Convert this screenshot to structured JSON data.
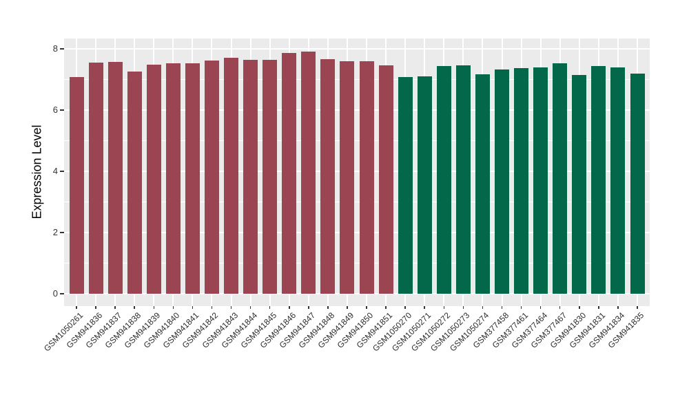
{
  "chart_data": {
    "type": "bar",
    "title": "",
    "xlabel": "",
    "ylabel": "Expression Level",
    "ylim": [
      -0.4,
      8.35
    ],
    "yticks": [
      0,
      2,
      4,
      6,
      8
    ],
    "yticks_minor": [
      1,
      3,
      5,
      7
    ],
    "grid": true,
    "legend_position": "none",
    "panel_background": "#EBEBEB",
    "grid_color": "#FFFFFF",
    "tick_color": "#333333",
    "categories": [
      "GSM1050261",
      "GSM941836",
      "GSM941837",
      "GSM941838",
      "GSM941839",
      "GSM941840",
      "GSM941841",
      "GSM941842",
      "GSM941843",
      "GSM941844",
      "GSM941845",
      "GSM941846",
      "GSM941847",
      "GSM941848",
      "GSM941849",
      "GSM941850",
      "GSM941851",
      "GSM1050270",
      "GSM1050271",
      "GSM1050272",
      "GSM1050273",
      "GSM1050274",
      "GSM377458",
      "GSM377461",
      "GSM377464",
      "GSM377467",
      "GSM941830",
      "GSM941831",
      "GSM941834",
      "GSM941835"
    ],
    "values": [
      7.07,
      7.54,
      7.58,
      7.25,
      7.49,
      7.52,
      7.52,
      7.61,
      7.71,
      7.64,
      7.65,
      7.86,
      7.91,
      7.66,
      7.59,
      7.59,
      7.47,
      7.08,
      7.1,
      7.44,
      7.47,
      7.16,
      7.32,
      7.38,
      7.4,
      7.53,
      7.15,
      7.44,
      7.4,
      7.19
    ],
    "groups": [
      "group1",
      "group1",
      "group1",
      "group1",
      "group1",
      "group1",
      "group1",
      "group1",
      "group1",
      "group1",
      "group1",
      "group1",
      "group1",
      "group1",
      "group1",
      "group1",
      "group1",
      "group2",
      "group2",
      "group2",
      "group2",
      "group2",
      "group2",
      "group2",
      "group2",
      "group2",
      "group2",
      "group2",
      "group2",
      "group2"
    ],
    "group_colors": {
      "group1": "#9A4551",
      "group2": "#026849"
    }
  }
}
